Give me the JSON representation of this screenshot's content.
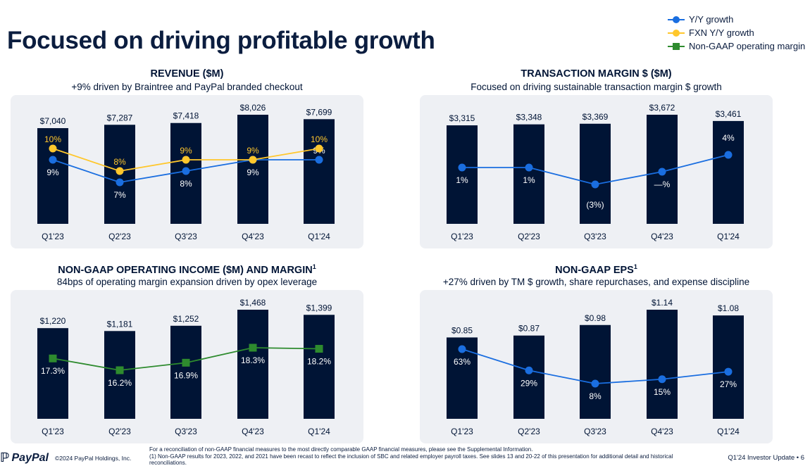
{
  "title": "Focused on driving profitable growth",
  "legend": [
    {
      "label": "Y/Y growth",
      "color": "#1a6ee0",
      "marker": "circle"
    },
    {
      "label": "FXN Y/Y growth",
      "color": "#ffc72c",
      "marker": "circle"
    },
    {
      "label": "Non-GAAP operating margin",
      "color": "#2e8b2e",
      "marker": "square"
    }
  ],
  "colors": {
    "bar": "#001435",
    "panel_bg": "#eef0f4",
    "text": "#001435"
  },
  "panels": {
    "revenue": {
      "title": "REVENUE ($M)",
      "subtitle": "+9% driven by Braintree and PayPal branded checkout"
    },
    "tm": {
      "title": "TRANSACTION MARGIN $ ($M)",
      "subtitle": "Focused on driving sustainable transaction margin $ growth"
    },
    "opinc": {
      "title": "NON-GAAP OPERATING INCOME ($M) AND MARGIN",
      "title_sup": "1",
      "subtitle": "84bps of operating margin expansion driven by opex leverage"
    },
    "eps": {
      "title": "NON-GAAP EPS",
      "title_sup": "1",
      "subtitle": "+27% driven by TM $ growth, share repurchases, and expense discipline"
    }
  },
  "chart_data": [
    {
      "id": "revenue",
      "type": "bar",
      "categories": [
        "Q1'23",
        "Q2'23",
        "Q3'23",
        "Q4'23",
        "Q1'24"
      ],
      "values": [
        7040,
        7287,
        7418,
        8026,
        7699
      ],
      "value_labels": [
        "$7,040",
        "$7,287",
        "$7,418",
        "$8,026",
        "$7,699"
      ],
      "lines": [
        {
          "name": "Y/Y growth",
          "color": "#1a6ee0",
          "marker": "circle",
          "values": [
            9,
            7,
            8,
            9,
            9
          ],
          "labels": [
            "9%",
            "7%",
            "8%",
            "9%",
            "9%"
          ]
        },
        {
          "name": "FXN Y/Y growth",
          "color": "#ffc72c",
          "marker": "circle",
          "values": [
            10,
            8,
            9,
            9,
            10
          ],
          "labels": [
            "10%",
            "8%",
            "9%",
            "9%",
            "10%"
          ]
        }
      ]
    },
    {
      "id": "tm",
      "type": "bar",
      "categories": [
        "Q1'23",
        "Q2'23",
        "Q3'23",
        "Q4'23",
        "Q1'24"
      ],
      "values": [
        3315,
        3348,
        3369,
        3672,
        3461
      ],
      "value_labels": [
        "$3,315",
        "$3,348",
        "$3,369",
        "$3,672",
        "$3,461"
      ],
      "lines": [
        {
          "name": "Y/Y growth",
          "color": "#1a6ee0",
          "marker": "circle",
          "values": [
            1,
            1,
            -3,
            0,
            4
          ],
          "labels": [
            "1%",
            "1%",
            "(3%)",
            "—%",
            "4%"
          ]
        }
      ]
    },
    {
      "id": "opinc",
      "type": "bar",
      "categories": [
        "Q1'23",
        "Q2'23",
        "Q3'23",
        "Q4'23",
        "Q1'24"
      ],
      "values": [
        1220,
        1181,
        1252,
        1468,
        1399
      ],
      "value_labels": [
        "$1,220",
        "$1,181",
        "$1,252",
        "$1,468",
        "$1,399"
      ],
      "lines": [
        {
          "name": "Non-GAAP operating margin",
          "color": "#2e8b2e",
          "marker": "square",
          "values": [
            17.3,
            16.2,
            16.9,
            18.3,
            18.2
          ],
          "labels": [
            "17.3%",
            "16.2%",
            "16.9%",
            "18.3%",
            "18.2%"
          ]
        }
      ]
    },
    {
      "id": "eps",
      "type": "bar",
      "categories": [
        "Q1'23",
        "Q2'23",
        "Q3'23",
        "Q4'23",
        "Q1'24"
      ],
      "values": [
        0.85,
        0.87,
        0.98,
        1.14,
        1.08
      ],
      "value_labels": [
        "$0.85",
        "$0.87",
        "$0.98",
        "$1.14",
        "$1.08"
      ],
      "lines": [
        {
          "name": "Y/Y growth",
          "color": "#1a6ee0",
          "marker": "circle",
          "values": [
            63,
            29,
            8,
            15,
            27
          ],
          "labels": [
            "63%",
            "29%",
            "8%",
            "15%",
            "27%"
          ]
        }
      ]
    }
  ],
  "footer": {
    "brand": "PayPal",
    "copyright": "©2024 PayPal Holdings, Inc.",
    "note1": "For a reconciliation of non-GAAP financial measures to the most directly comparable GAAP financial measures, please see the Supplemental Information.",
    "note2": "(1) Non-GAAP results for 2023, 2022, and 2021 have been recast to reflect the inclusion of SBC and related employer payroll taxes. See slides 13 and 20-22 of this presentation for additional detail and historical reconciliations.",
    "right": "Q1'24 Investor Update  •  6"
  }
}
